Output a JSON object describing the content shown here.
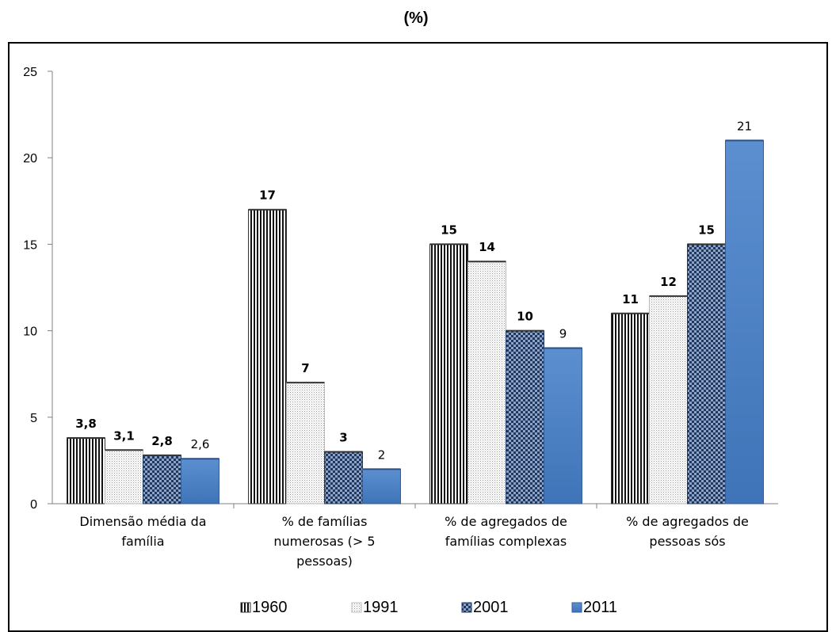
{
  "chart_data": {
    "type": "bar",
    "title": "(%)",
    "categories": [
      [
        "Dimensão média da",
        "família"
      ],
      [
        "% de famílias",
        "numerosas (> 5",
        "pessoas)"
      ],
      [
        "%  de agregados de",
        "famílias complexas"
      ],
      [
        "% de agregados de",
        "pessoas sós"
      ]
    ],
    "series": [
      {
        "name": "1960",
        "values": [
          3.8,
          17,
          15,
          11
        ],
        "labels": [
          "3,8",
          "17",
          "15",
          "11"
        ],
        "bold_labels": true,
        "pattern": "vertical-stripes"
      },
      {
        "name": "1991",
        "values": [
          3.1,
          7,
          14,
          12
        ],
        "labels": [
          "3,1",
          "7",
          "14",
          "12"
        ],
        "bold_labels": true,
        "pattern": "dots"
      },
      {
        "name": "2001",
        "values": [
          2.8,
          3,
          10,
          15
        ],
        "labels": [
          "2,8",
          "3",
          "10",
          "15"
        ],
        "bold_labels": true,
        "pattern": "checker"
      },
      {
        "name": "2011",
        "values": [
          2.6,
          2,
          9,
          21
        ],
        "labels": [
          "2,6",
          "2",
          "9",
          "21"
        ],
        "bold_labels": false,
        "pattern": "solid-blue"
      }
    ],
    "ylim": [
      0,
      25
    ],
    "yticks": [
      0,
      5,
      10,
      15,
      20,
      25
    ],
    "grid": false,
    "legend": "bottom"
  },
  "colors": {
    "checker": "#1F3864",
    "blue": "#4F81BD",
    "blue_dark": "#2F5D9A",
    "axis": "#808080"
  }
}
